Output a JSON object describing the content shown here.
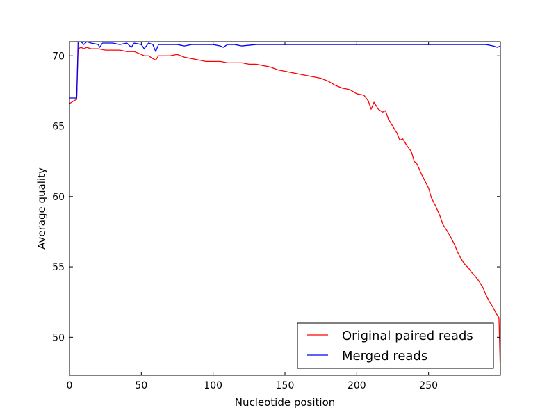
{
  "chart_data": {
    "type": "line",
    "title": "",
    "xlabel": "Nucleotide position",
    "ylabel": "Average quality",
    "xlim": [
      0,
      300
    ],
    "ylim": [
      47.3,
      71
    ],
    "x_ticks": [
      0,
      50,
      100,
      150,
      200,
      250
    ],
    "x_tick_labels": [
      "0",
      "50",
      "100",
      "150",
      "200",
      "250"
    ],
    "y_ticks": [
      50,
      55,
      60,
      65,
      70
    ],
    "y_tick_labels": [
      "50",
      "55",
      "60",
      "65",
      "70"
    ],
    "grid": false,
    "legend_position": "lower-right",
    "series": [
      {
        "name": "Original paired reads",
        "color": "#ff0000",
        "x": [
          0,
          3,
          5,
          6,
          8,
          10,
          12,
          15,
          20,
          25,
          30,
          35,
          40,
          45,
          50,
          52,
          55,
          58,
          60,
          62,
          65,
          70,
          75,
          80,
          85,
          90,
          95,
          100,
          105,
          110,
          115,
          120,
          125,
          130,
          135,
          140,
          145,
          150,
          155,
          160,
          165,
          170,
          175,
          180,
          185,
          190,
          195,
          200,
          205,
          208,
          210,
          212,
          215,
          218,
          220,
          222,
          225,
          228,
          230,
          232,
          235,
          238,
          240,
          242,
          245,
          248,
          250,
          252,
          255,
          258,
          260,
          262,
          265,
          268,
          270,
          272,
          275,
          278,
          280,
          282,
          285,
          288,
          290,
          292,
          295,
          297,
          299,
          300
        ],
        "y": [
          66.6,
          66.8,
          66.9,
          70.5,
          70.6,
          70.5,
          70.6,
          70.5,
          70.5,
          70.4,
          70.4,
          70.4,
          70.3,
          70.3,
          70.1,
          70.0,
          70.0,
          69.8,
          69.7,
          70.0,
          70.0,
          70.0,
          70.1,
          69.9,
          69.8,
          69.7,
          69.6,
          69.6,
          69.6,
          69.5,
          69.5,
          69.5,
          69.4,
          69.4,
          69.3,
          69.2,
          69.0,
          68.9,
          68.8,
          68.7,
          68.6,
          68.5,
          68.4,
          68.2,
          67.9,
          67.7,
          67.6,
          67.3,
          67.2,
          66.8,
          66.2,
          66.7,
          66.2,
          66.0,
          66.1,
          65.5,
          65.0,
          64.5,
          64.0,
          64.1,
          63.6,
          63.2,
          62.5,
          62.3,
          61.6,
          61.0,
          60.6,
          59.9,
          59.3,
          58.6,
          58.0,
          57.7,
          57.2,
          56.6,
          56.1,
          55.7,
          55.2,
          54.9,
          54.6,
          54.4,
          54.0,
          53.5,
          53.0,
          52.6,
          52.1,
          51.7,
          51.4,
          47.4
        ]
      },
      {
        "name": "Merged reads",
        "color": "#0000ff",
        "x": [
          0,
          3,
          5,
          6,
          8,
          10,
          12,
          15,
          20,
          21,
          23,
          25,
          30,
          35,
          40,
          43,
          45,
          50,
          52,
          55,
          58,
          60,
          62,
          65,
          70,
          75,
          80,
          85,
          90,
          95,
          100,
          105,
          107,
          110,
          115,
          120,
          130,
          140,
          150,
          160,
          170,
          180,
          190,
          200,
          210,
          220,
          230,
          240,
          250,
          260,
          270,
          280,
          290,
          295,
          298,
          300
        ],
        "y": [
          67.0,
          67.0,
          67.0,
          71.0,
          71.0,
          70.8,
          71.0,
          70.9,
          70.8,
          70.6,
          70.9,
          70.9,
          70.9,
          70.8,
          70.9,
          70.6,
          70.9,
          70.8,
          70.5,
          70.9,
          70.8,
          70.3,
          70.8,
          70.8,
          70.8,
          70.8,
          70.7,
          70.8,
          70.8,
          70.8,
          70.8,
          70.7,
          70.6,
          70.8,
          70.8,
          70.7,
          70.8,
          70.8,
          70.8,
          70.8,
          70.8,
          70.8,
          70.8,
          70.8,
          70.8,
          70.8,
          70.8,
          70.8,
          70.8,
          70.8,
          70.8,
          70.8,
          70.8,
          70.7,
          70.6,
          70.7
        ]
      }
    ]
  }
}
